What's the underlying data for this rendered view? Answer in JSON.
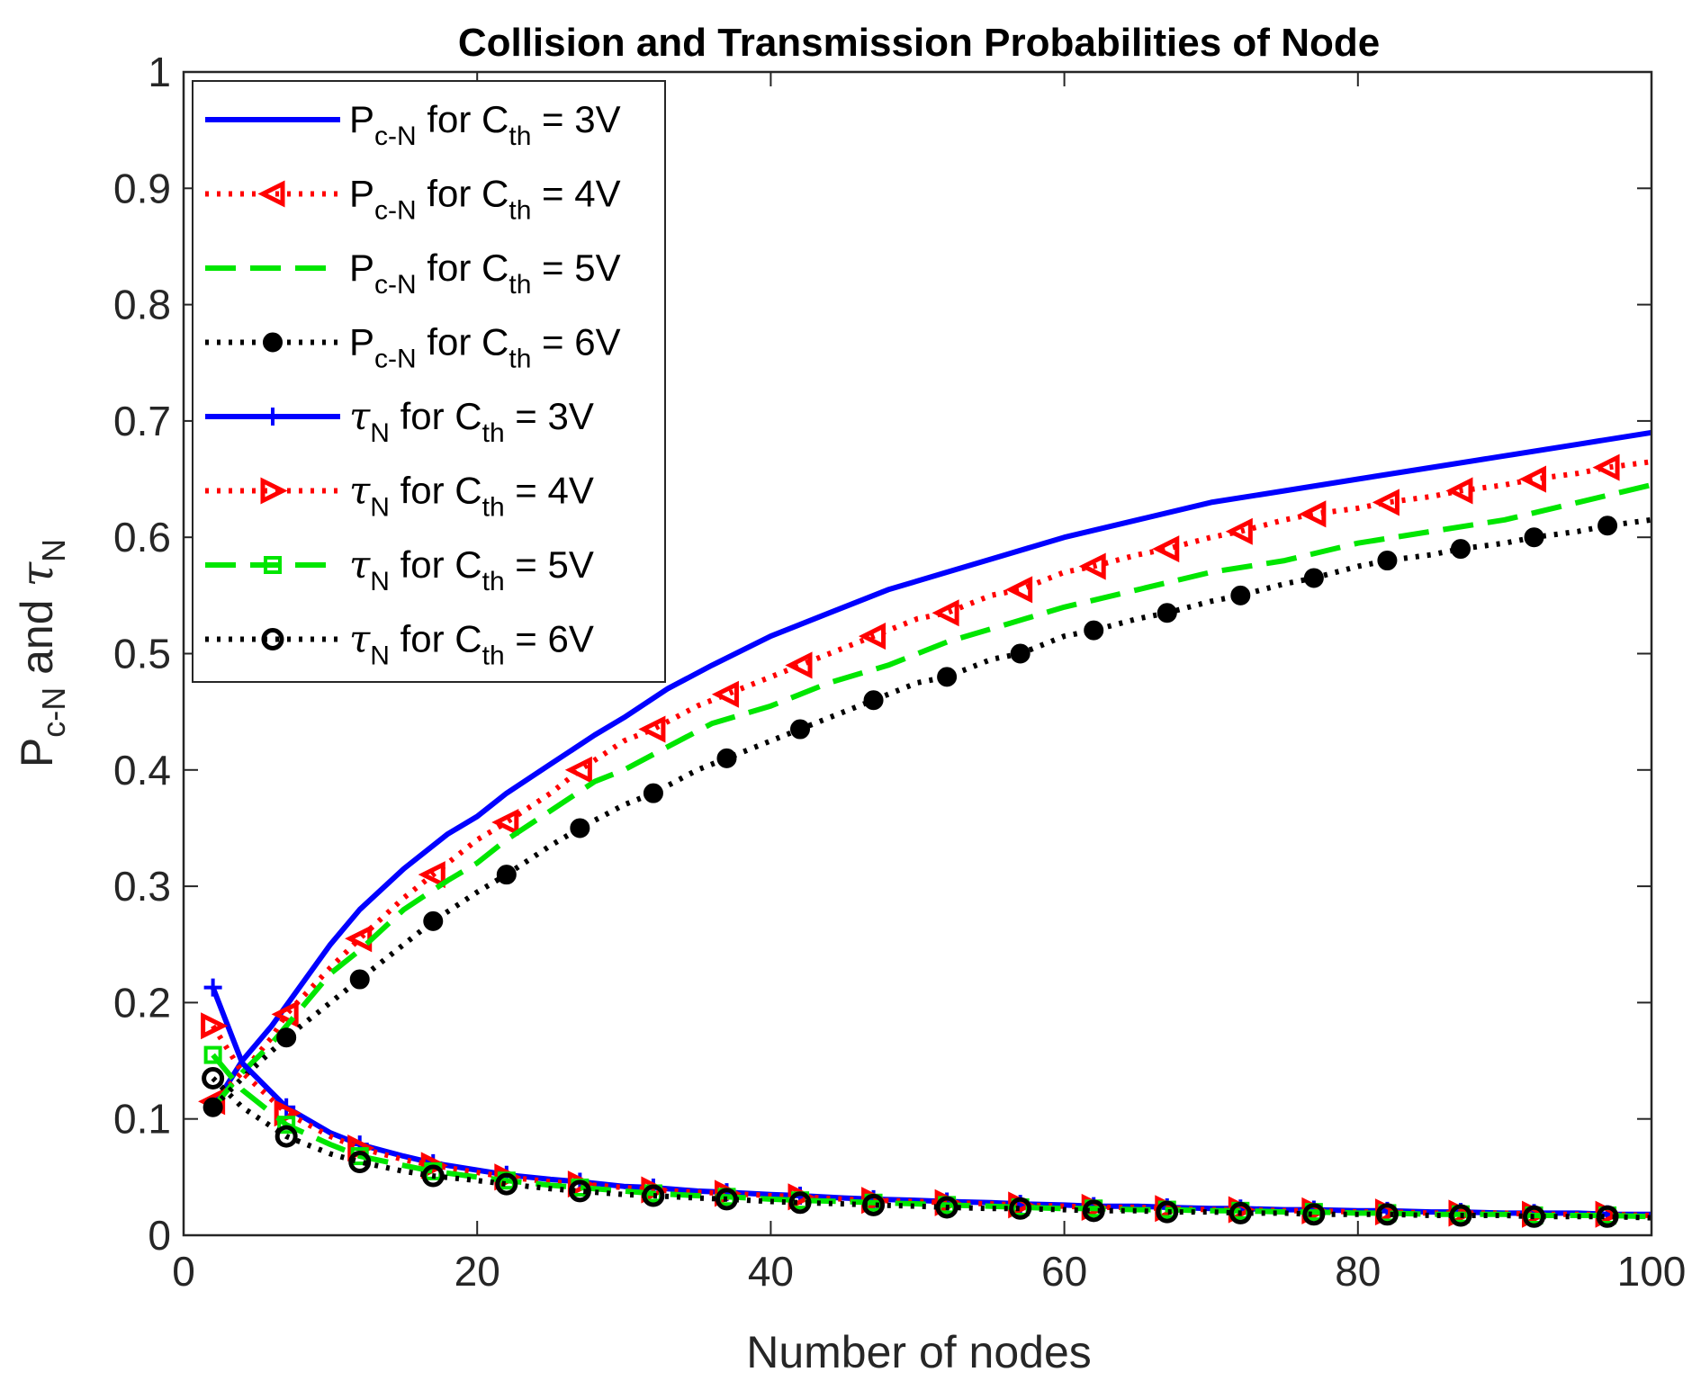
{
  "chart_data": {
    "type": "line",
    "title": "Collision and Transmission Probabilities of Node",
    "xlabel": "Number of nodes",
    "ylabel": {
      "p_main": "P",
      "p_sub": "c-N",
      "and": " and ",
      "tau": "τ",
      "tau_sub": "N"
    },
    "xlim": [
      0,
      100
    ],
    "ylim": [
      0,
      1
    ],
    "xticks": [
      0,
      20,
      40,
      60,
      80,
      100
    ],
    "yticks": [
      0,
      0.1,
      0.2,
      0.3,
      0.4,
      0.5,
      0.6,
      0.7,
      0.8,
      0.9,
      1
    ],
    "ytick_labels": [
      "0",
      "0.1",
      "0.2",
      "0.3",
      "0.4",
      "0.5",
      "0.6",
      "0.7",
      "0.8",
      "0.9",
      "1"
    ],
    "xtick_labels": [
      "0",
      "20",
      "40",
      "60",
      "80",
      "100"
    ],
    "legend_position": "top-left",
    "series": [
      {
        "name": "P_c-N for C_th = 3V",
        "symbol": "P",
        "sub": "c-N",
        "cond": " for C",
        "cond_sub": "th",
        "tail": " = 3V",
        "color": "#0000ff",
        "dash": "solid",
        "marker": "none",
        "x": [
          2,
          4,
          6,
          8,
          10,
          12,
          15,
          18,
          20,
          22,
          25,
          28,
          30,
          33,
          36,
          40,
          44,
          48,
          52,
          56,
          60,
          65,
          70,
          75,
          80,
          85,
          90,
          95,
          100
        ],
        "y": [
          0.11,
          0.15,
          0.18,
          0.215,
          0.25,
          0.28,
          0.315,
          0.345,
          0.36,
          0.38,
          0.405,
          0.43,
          0.445,
          0.47,
          0.49,
          0.515,
          0.535,
          0.555,
          0.57,
          0.585,
          0.6,
          0.615,
          0.63,
          0.64,
          0.65,
          0.66,
          0.67,
          0.68,
          0.69
        ]
      },
      {
        "name": "P_c-N for C_th = 4V",
        "symbol": "P",
        "sub": "c-N",
        "cond": " for C",
        "cond_sub": "th",
        "tail": " = 4V",
        "color": "#ff0000",
        "dash": "dotted",
        "marker": "triangle-left",
        "x": [
          2,
          4,
          6,
          7,
          10,
          12,
          15,
          17,
          20,
          22,
          25,
          27,
          30,
          32,
          35,
          37,
          40,
          42,
          45,
          47,
          50,
          52,
          55,
          57,
          60,
          62,
          65,
          67,
          70,
          72,
          75,
          77,
          80,
          82,
          85,
          87,
          90,
          92,
          95,
          97,
          100
        ],
        "y": [
          0.115,
          0.14,
          0.17,
          0.19,
          0.23,
          0.255,
          0.29,
          0.31,
          0.34,
          0.355,
          0.38,
          0.4,
          0.425,
          0.435,
          0.455,
          0.465,
          0.48,
          0.49,
          0.505,
          0.515,
          0.53,
          0.535,
          0.55,
          0.555,
          0.57,
          0.575,
          0.585,
          0.59,
          0.6,
          0.605,
          0.615,
          0.62,
          0.625,
          0.63,
          0.635,
          0.64,
          0.645,
          0.65,
          0.655,
          0.66,
          0.665
        ],
        "marker_x": [
          2,
          7,
          12,
          17,
          22,
          27,
          32,
          37,
          42,
          47,
          52,
          57,
          62,
          67,
          72,
          77,
          82,
          87,
          92,
          97
        ]
      },
      {
        "name": "P_c-N for C_th = 5V",
        "symbol": "P",
        "sub": "c-N",
        "cond": " for C",
        "cond_sub": "th",
        "tail": " = 5V",
        "color": "#00e600",
        "dash": "dashed",
        "marker": "none",
        "x": [
          2,
          4,
          6,
          8,
          10,
          12,
          15,
          18,
          20,
          22,
          25,
          28,
          30,
          33,
          36,
          40,
          44,
          48,
          52,
          56,
          60,
          65,
          70,
          75,
          80,
          85,
          90,
          95,
          100
        ],
        "y": [
          0.11,
          0.14,
          0.165,
          0.195,
          0.225,
          0.245,
          0.28,
          0.305,
          0.32,
          0.34,
          0.365,
          0.39,
          0.4,
          0.42,
          0.44,
          0.455,
          0.475,
          0.49,
          0.51,
          0.525,
          0.54,
          0.555,
          0.57,
          0.58,
          0.595,
          0.605,
          0.615,
          0.63,
          0.645
        ]
      },
      {
        "name": "P_c-N for C_th = 6V",
        "symbol": "P",
        "sub": "c-N",
        "cond": " for C",
        "cond_sub": "th",
        "tail": " = 6V",
        "color": "#000000",
        "dash": "dotted",
        "marker": "filled-circle",
        "x": [
          2,
          4,
          7,
          10,
          12,
          15,
          17,
          20,
          22,
          25,
          27,
          30,
          32,
          35,
          37,
          40,
          42,
          45,
          47,
          50,
          52,
          55,
          57,
          60,
          62,
          65,
          67,
          70,
          72,
          75,
          77,
          80,
          82,
          85,
          87,
          90,
          92,
          95,
          97,
          100
        ],
        "y": [
          0.11,
          0.135,
          0.17,
          0.2,
          0.22,
          0.25,
          0.27,
          0.295,
          0.31,
          0.335,
          0.35,
          0.37,
          0.38,
          0.4,
          0.41,
          0.425,
          0.435,
          0.45,
          0.46,
          0.475,
          0.48,
          0.495,
          0.5,
          0.515,
          0.52,
          0.53,
          0.535,
          0.545,
          0.55,
          0.56,
          0.565,
          0.575,
          0.58,
          0.585,
          0.59,
          0.595,
          0.6,
          0.605,
          0.61,
          0.615
        ],
        "marker_x": [
          2,
          7,
          12,
          17,
          22,
          27,
          32,
          37,
          42,
          47,
          52,
          57,
          62,
          67,
          72,
          77,
          82,
          87,
          92,
          97
        ]
      },
      {
        "name": "τ_N for C_th = 3V",
        "symbol": "τ",
        "sub": "N",
        "cond": " for C",
        "cond_sub": "th",
        "tail": " = 3V",
        "color": "#0000ff",
        "dash": "solid",
        "marker": "plus",
        "x": [
          2,
          4,
          7,
          10,
          12,
          15,
          17,
          20,
          22,
          25,
          27,
          30,
          32,
          35,
          37,
          40,
          42,
          45,
          47,
          50,
          52,
          55,
          57,
          60,
          62,
          65,
          67,
          70,
          72,
          75,
          77,
          80,
          82,
          85,
          87,
          90,
          92,
          95,
          97,
          100
        ],
        "y": [
          0.213,
          0.148,
          0.11,
          0.088,
          0.078,
          0.068,
          0.062,
          0.056,
          0.052,
          0.048,
          0.046,
          0.042,
          0.041,
          0.038,
          0.037,
          0.035,
          0.034,
          0.032,
          0.031,
          0.03,
          0.029,
          0.028,
          0.027,
          0.026,
          0.025,
          0.025,
          0.024,
          0.023,
          0.023,
          0.022,
          0.022,
          0.021,
          0.021,
          0.02,
          0.02,
          0.019,
          0.019,
          0.019,
          0.018,
          0.018
        ],
        "marker_x": [
          2,
          7,
          12,
          17,
          22,
          27,
          32,
          37,
          42,
          47,
          52,
          57,
          62,
          67,
          72,
          77,
          82,
          87,
          92,
          97
        ]
      },
      {
        "name": "τ_N for C_th = 4V",
        "symbol": "τ",
        "sub": "N",
        "cond": " for C",
        "cond_sub": "th",
        "tail": " = 4V",
        "color": "#ff0000",
        "dash": "dotted",
        "marker": "triangle-right",
        "x": [
          2,
          4,
          7,
          10,
          12,
          15,
          17,
          20,
          22,
          25,
          27,
          30,
          32,
          35,
          37,
          40,
          42,
          45,
          47,
          50,
          52,
          55,
          57,
          60,
          62,
          65,
          67,
          70,
          72,
          75,
          77,
          80,
          82,
          85,
          87,
          90,
          92,
          95,
          97,
          100
        ],
        "y": [
          0.18,
          0.14,
          0.105,
          0.085,
          0.075,
          0.065,
          0.06,
          0.054,
          0.05,
          0.046,
          0.044,
          0.041,
          0.039,
          0.037,
          0.036,
          0.034,
          0.033,
          0.031,
          0.03,
          0.029,
          0.028,
          0.027,
          0.026,
          0.025,
          0.024,
          0.024,
          0.023,
          0.022,
          0.022,
          0.021,
          0.021,
          0.02,
          0.02,
          0.019,
          0.019,
          0.019,
          0.018,
          0.018,
          0.018,
          0.017
        ],
        "marker_x": [
          2,
          7,
          12,
          17,
          22,
          27,
          32,
          37,
          42,
          47,
          52,
          57,
          62,
          67,
          72,
          77,
          82,
          87,
          92,
          97
        ]
      },
      {
        "name": "τ_N for C_th = 5V",
        "symbol": "τ",
        "sub": "N",
        "cond": " for C",
        "cond_sub": "th",
        "tail": " = 5V",
        "color": "#00e600",
        "dash": "dashed",
        "marker": "square",
        "x": [
          2,
          4,
          7,
          10,
          12,
          15,
          17,
          20,
          22,
          25,
          27,
          30,
          32,
          35,
          37,
          40,
          42,
          45,
          47,
          50,
          52,
          55,
          57,
          60,
          62,
          65,
          67,
          70,
          72,
          75,
          77,
          80,
          82,
          85,
          87,
          90,
          92,
          95,
          97,
          100
        ],
        "y": [
          0.155,
          0.125,
          0.095,
          0.078,
          0.068,
          0.06,
          0.055,
          0.05,
          0.047,
          0.043,
          0.041,
          0.038,
          0.036,
          0.034,
          0.033,
          0.031,
          0.03,
          0.029,
          0.028,
          0.027,
          0.026,
          0.025,
          0.024,
          0.023,
          0.023,
          0.022,
          0.022,
          0.021,
          0.021,
          0.02,
          0.02,
          0.019,
          0.019,
          0.018,
          0.018,
          0.018,
          0.017,
          0.017,
          0.017,
          0.016
        ],
        "marker_x": [
          2,
          7,
          12,
          17,
          22,
          27,
          32,
          37,
          42,
          47,
          52,
          57,
          62,
          67,
          72,
          77,
          82,
          87,
          92,
          97
        ]
      },
      {
        "name": "τ_N for C_th = 6V",
        "symbol": "τ",
        "sub": "N",
        "cond": " for C",
        "cond_sub": "th",
        "tail": " = 6V",
        "color": "#000000",
        "dash": "dotted",
        "marker": "open-circle",
        "x": [
          2,
          4,
          7,
          10,
          12,
          15,
          17,
          20,
          22,
          25,
          27,
          30,
          32,
          35,
          37,
          40,
          42,
          45,
          47,
          50,
          52,
          55,
          57,
          60,
          62,
          65,
          67,
          70,
          72,
          75,
          77,
          80,
          82,
          85,
          87,
          90,
          92,
          95,
          97,
          100
        ],
        "y": [
          0.135,
          0.11,
          0.085,
          0.07,
          0.063,
          0.055,
          0.051,
          0.047,
          0.044,
          0.04,
          0.038,
          0.035,
          0.034,
          0.032,
          0.031,
          0.029,
          0.028,
          0.027,
          0.026,
          0.025,
          0.024,
          0.023,
          0.023,
          0.022,
          0.021,
          0.021,
          0.02,
          0.02,
          0.019,
          0.019,
          0.018,
          0.018,
          0.018,
          0.017,
          0.017,
          0.017,
          0.016,
          0.016,
          0.016,
          0.015
        ],
        "marker_x": [
          2,
          7,
          12,
          17,
          22,
          27,
          32,
          37,
          42,
          47,
          52,
          57,
          62,
          67,
          72,
          77,
          82,
          87,
          92,
          97
        ]
      }
    ]
  }
}
